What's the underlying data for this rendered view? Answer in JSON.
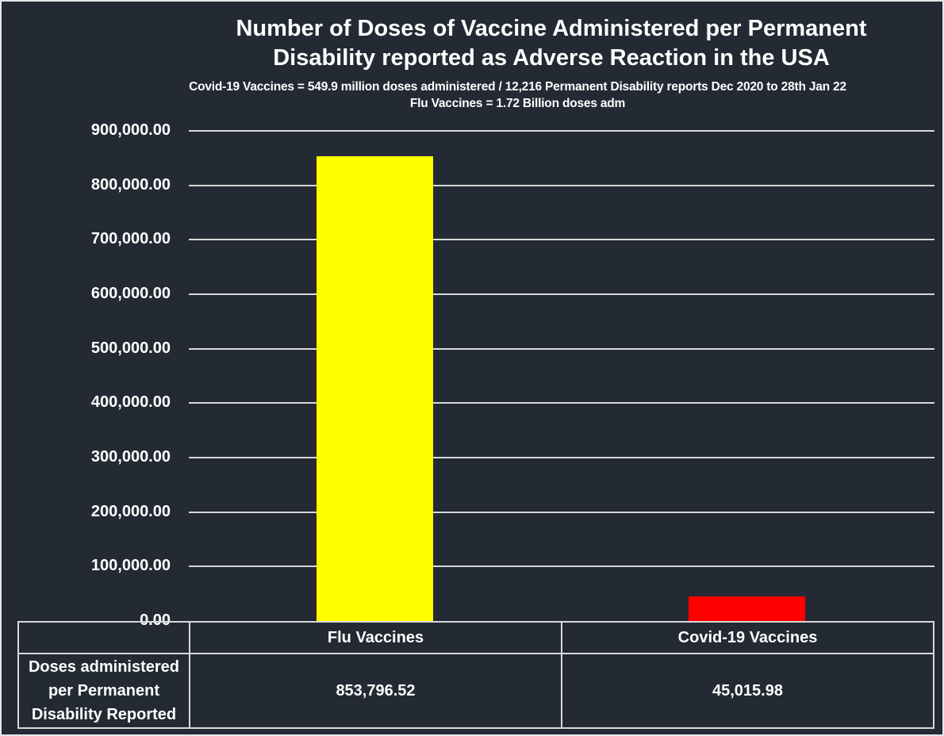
{
  "window": {
    "background_color": "#232A33",
    "frame_border_color": "#E7E7E7",
    "text_color": "#FFFFFF"
  },
  "title": {
    "line1": "Number of Doses of Vaccine Administered per Permanent",
    "line2": "Disability reported as Adverse Reaction in the USA"
  },
  "subtitle": {
    "line1": "Covid-19 Vaccines = 549.9 million doses administered / 12,216 Permanent Disability reports Dec 2020 to 28th Jan 22",
    "line2": "Flu Vaccines = 1.72 Billion doses adm"
  },
  "chart_data": {
    "type": "bar",
    "title": "Number of Doses of Vaccine Administered per Permanent Disability reported as Adverse Reaction in the USA",
    "subtitle": "Covid-19 Vaccines = 549.9 million doses administered / 12,216 Permanent Disability reports Dec 2020 to 28th Jan 22 | Flu Vaccines = 1.72 Billion doses adm",
    "categories": [
      "Flu Vaccines",
      "Covid-19 Vaccines"
    ],
    "values": [
      853796.52,
      45015.98
    ],
    "value_labels": [
      "853,796.52",
      "45,015.98"
    ],
    "bar_colors": [
      "#FFFF00",
      "#FF0000"
    ],
    "xlabel": "",
    "ylabel": "",
    "ylim": [
      0,
      900000
    ],
    "ytick_step": 100000,
    "ytick_labels": [
      "900,000.00",
      "800,000.00",
      "700,000.00",
      "600,000.00",
      "500,000.00",
      "400,000.00",
      "300,000.00",
      "200,000.00",
      "100,000.00",
      "0.00"
    ],
    "grid": true,
    "gridline_color": "#D9D9D9",
    "legend_position": "none"
  },
  "table": {
    "row_label_lines": [
      "Doses administered",
      "per Permanent",
      "Disability Reported"
    ],
    "border_color": "#D9D9D9"
  }
}
